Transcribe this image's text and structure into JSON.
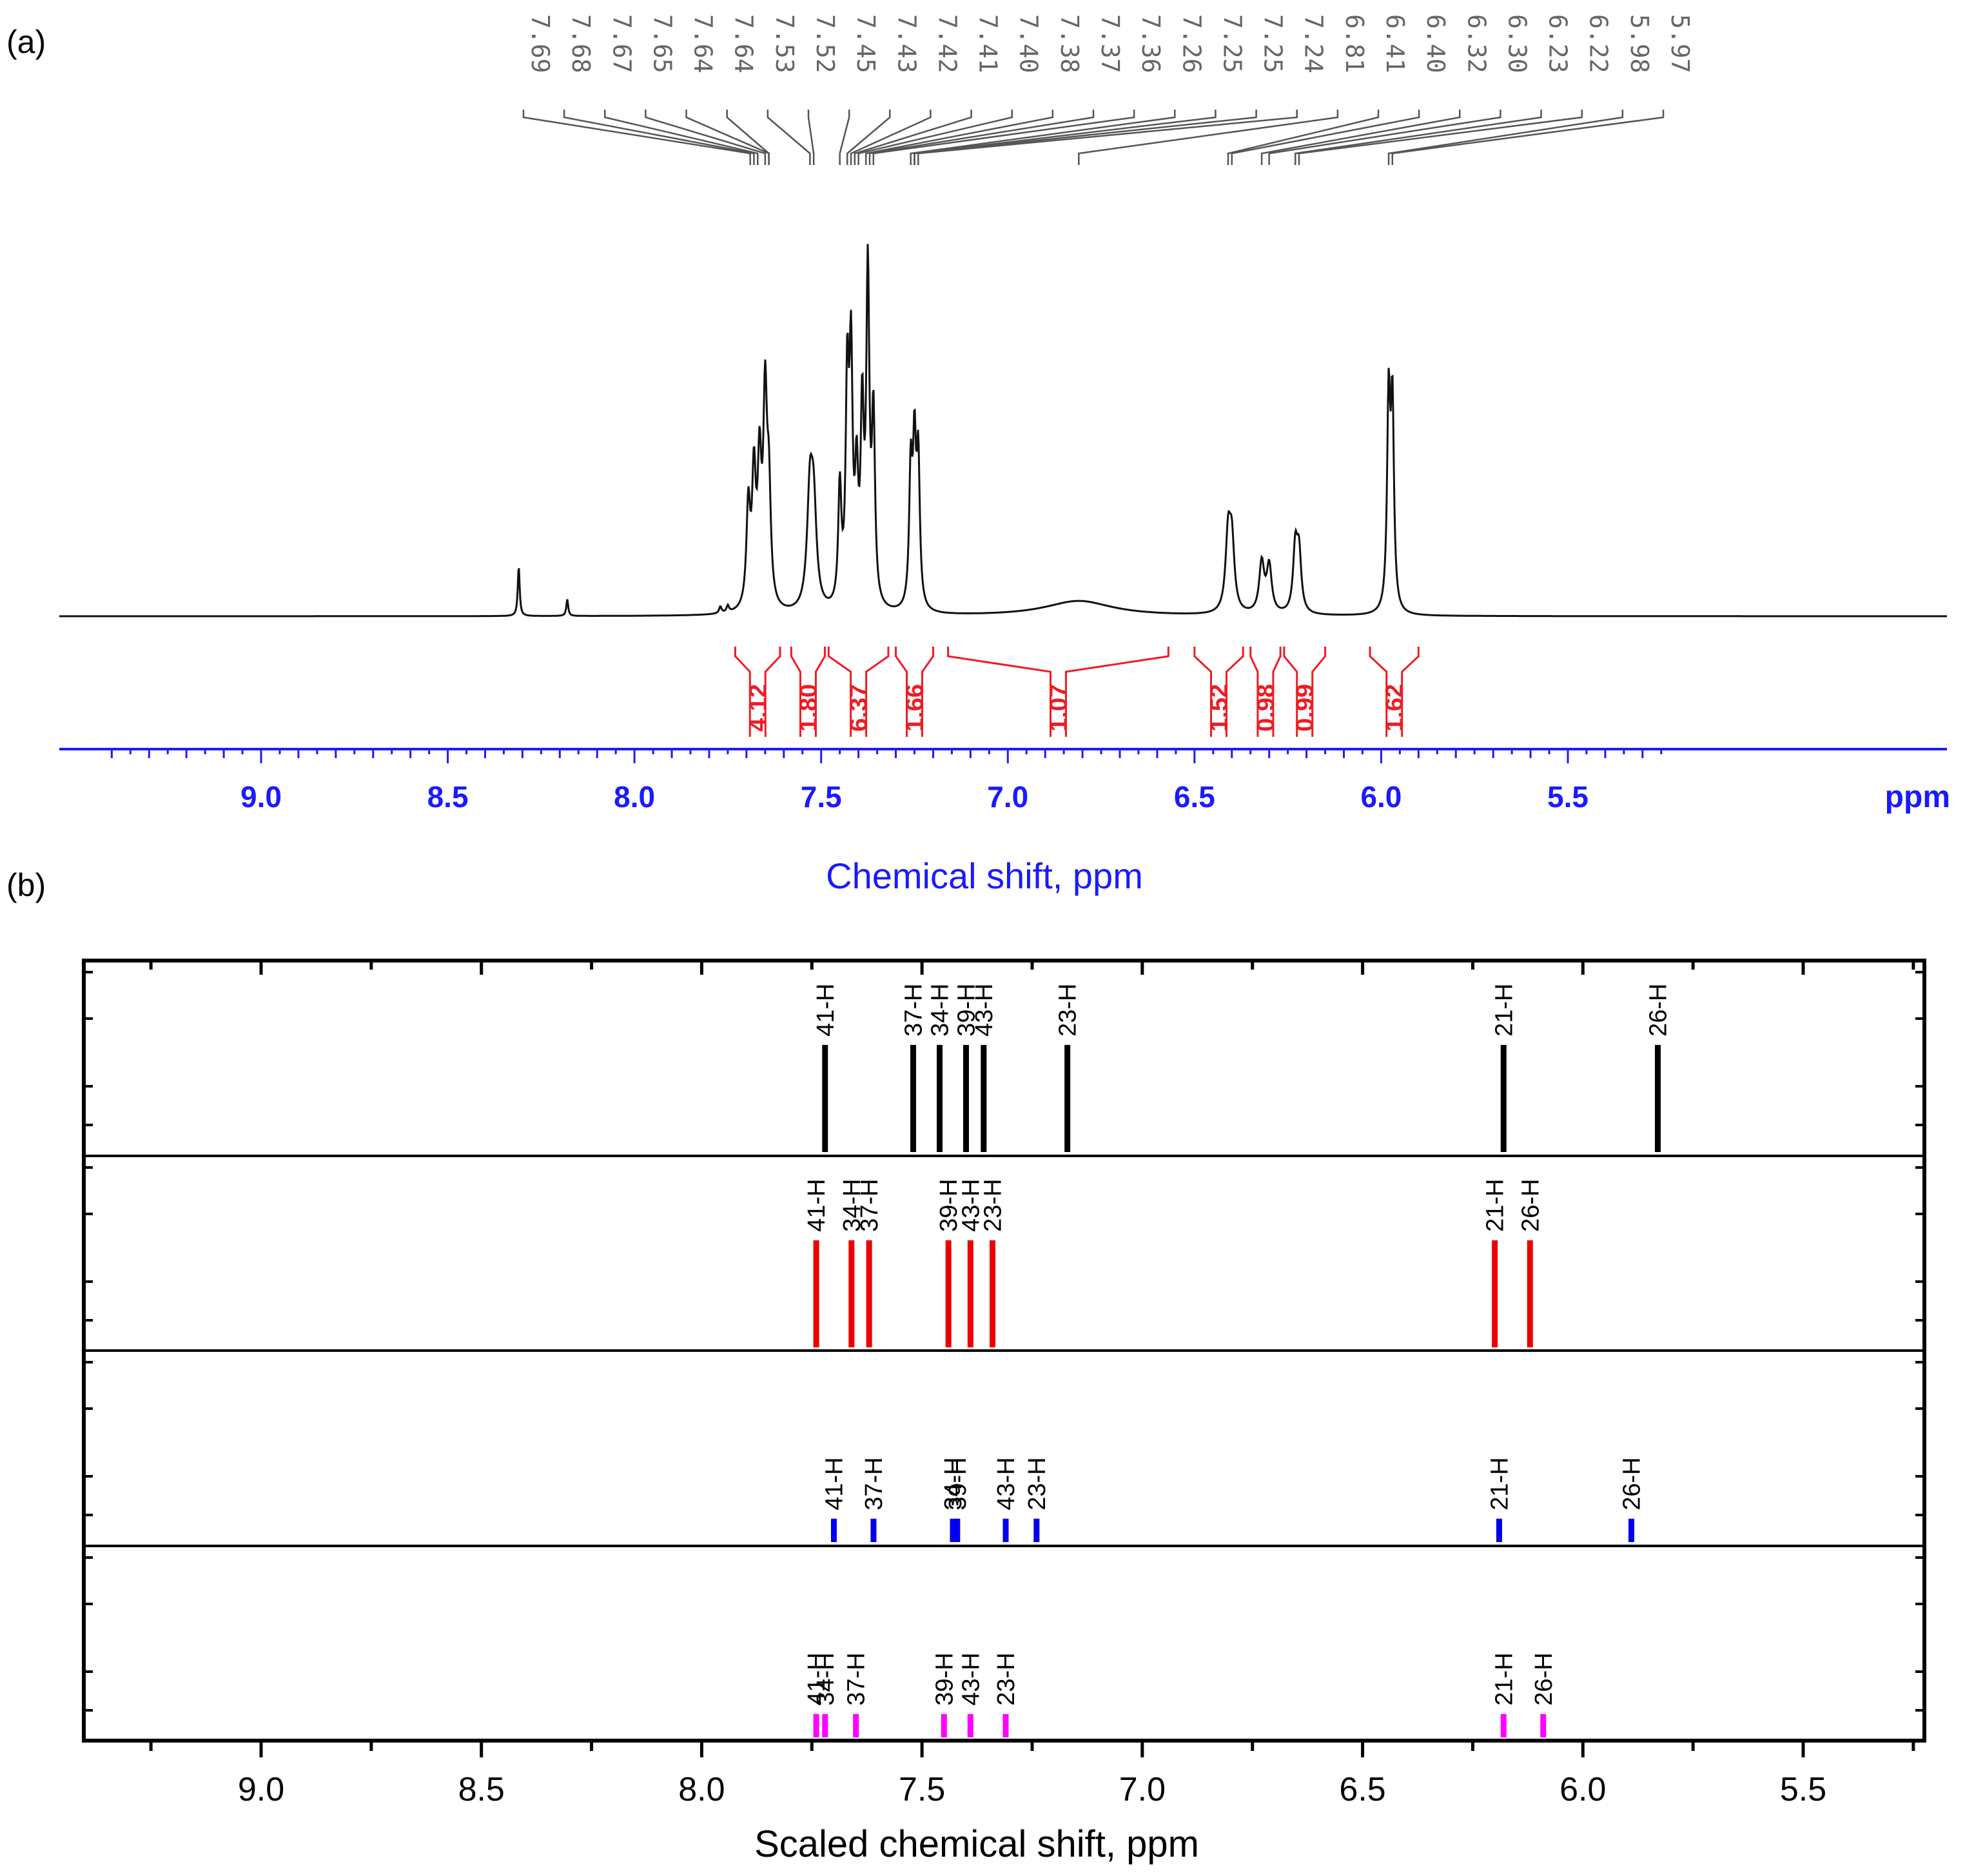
{
  "panel_a_label": "(a)",
  "panel_b_label": "(b)",
  "colors": {
    "spectrum": "#111111",
    "integral": "#ee1c24",
    "axis_a": "#1a1aff",
    "peak_labels": "#666666",
    "series": [
      "#000000",
      "#ee0000",
      "#0000ee",
      "#ff00ff"
    ]
  },
  "chart_data": [
    {
      "type": "line",
      "panel": "(a)",
      "xlabel": "Chemical shift, ppm",
      "unit_label": "ppm",
      "xlim": [
        9.45,
        5.2
      ],
      "xticks": [
        9.0,
        8.5,
        8.0,
        7.5,
        7.0,
        6.5,
        6.0,
        5.5
      ],
      "xtick_labels": [
        "9.0",
        "8.5",
        "8.0",
        "7.5",
        "7.0",
        "6.5",
        "6.0",
        "5.5"
      ],
      "peak_labels": [
        "7.69",
        "7.68",
        "7.67",
        "7.65",
        "7.64",
        "7.64",
        "7.53",
        "7.52",
        "7.45",
        "7.43",
        "7.42",
        "7.41",
        "7.40",
        "7.38",
        "7.37",
        "7.36",
        "7.26",
        "7.25",
        "7.25",
        "7.24",
        "6.81",
        "6.41",
        "6.40",
        "6.32",
        "6.30",
        "6.23",
        "6.22",
        "5.98",
        "5.97"
      ],
      "peaks": [
        {
          "x": 8.31,
          "h": 0.15,
          "w": 0.003
        },
        {
          "x": 8.18,
          "h": 0.05,
          "w": 0.003
        },
        {
          "x": 7.77,
          "h": 0.02,
          "w": 0.004
        },
        {
          "x": 7.75,
          "h": 0.02,
          "w": 0.004
        },
        {
          "x": 7.695,
          "h": 0.3,
          "w": 0.006
        },
        {
          "x": 7.68,
          "h": 0.38,
          "w": 0.006
        },
        {
          "x": 7.665,
          "h": 0.4,
          "w": 0.006
        },
        {
          "x": 7.65,
          "h": 0.6,
          "w": 0.006
        },
        {
          "x": 7.64,
          "h": 0.32,
          "w": 0.006
        },
        {
          "x": 7.53,
          "h": 0.33,
          "w": 0.009
        },
        {
          "x": 7.52,
          "h": 0.28,
          "w": 0.009
        },
        {
          "x": 7.45,
          "h": 0.35,
          "w": 0.005
        },
        {
          "x": 7.43,
          "h": 0.65,
          "w": 0.005
        },
        {
          "x": 7.42,
          "h": 0.7,
          "w": 0.005
        },
        {
          "x": 7.405,
          "h": 0.35,
          "w": 0.005
        },
        {
          "x": 7.39,
          "h": 0.55,
          "w": 0.005
        },
        {
          "x": 7.375,
          "h": 0.97,
          "w": 0.005
        },
        {
          "x": 7.36,
          "h": 0.55,
          "w": 0.005
        },
        {
          "x": 7.26,
          "h": 0.4,
          "w": 0.005
        },
        {
          "x": 7.25,
          "h": 0.45,
          "w": 0.005
        },
        {
          "x": 7.24,
          "h": 0.43,
          "w": 0.005
        },
        {
          "x": 6.81,
          "h": 0.045,
          "w": 0.11
        },
        {
          "x": 6.41,
          "h": 0.22,
          "w": 0.008
        },
        {
          "x": 6.4,
          "h": 0.2,
          "w": 0.008
        },
        {
          "x": 6.32,
          "h": 0.15,
          "w": 0.008
        },
        {
          "x": 6.3,
          "h": 0.14,
          "w": 0.008
        },
        {
          "x": 6.23,
          "h": 0.19,
          "w": 0.007
        },
        {
          "x": 6.22,
          "h": 0.17,
          "w": 0.007
        },
        {
          "x": 5.98,
          "h": 0.62,
          "w": 0.005
        },
        {
          "x": 5.97,
          "h": 0.6,
          "w": 0.005
        }
      ],
      "integrals": [
        {
          "value": "4.12",
          "from": 7.73,
          "to": 7.61
        },
        {
          "value": "1.80",
          "from": 7.58,
          "to": 7.49
        },
        {
          "value": "6.37",
          "from": 7.48,
          "to": 7.32
        },
        {
          "value": "1.66",
          "from": 7.3,
          "to": 7.2
        },
        {
          "value": "1.07",
          "from": 7.16,
          "to": 6.57
        },
        {
          "value": "1.52",
          "from": 6.5,
          "to": 6.37
        },
        {
          "value": "0.98",
          "from": 6.35,
          "to": 6.27
        },
        {
          "value": "0.99",
          "from": 6.26,
          "to": 6.15
        },
        {
          "value": "1.62",
          "from": 6.03,
          "to": 5.9
        }
      ]
    },
    {
      "type": "bar",
      "panel": "(b)",
      "xlabel": "Scaled chemical shift, ppm",
      "xlim": [
        9.45,
        5.2
      ],
      "xticks": [
        9.0,
        8.5,
        8.0,
        7.5,
        7.0,
        6.5,
        6.0,
        5.5
      ],
      "xtick_labels": [
        "9.0",
        "8.5",
        "8.0",
        "7.5",
        "7.0",
        "6.5",
        "6.0",
        "5.5"
      ],
      "series": [
        {
          "x": [
            7.72,
            7.52,
            7.46,
            7.4,
            7.36,
            7.17,
            6.18,
            5.83
          ],
          "height": 0.55,
          "labels": [
            "41-H",
            "37-H",
            "34-H",
            "39-H",
            "43-H",
            "23-H",
            "21-H",
            "26-H"
          ]
        },
        {
          "x": [
            7.74,
            7.66,
            7.62,
            7.44,
            7.39,
            7.34,
            6.2,
            6.12
          ],
          "height": 0.55,
          "labels": [
            "41-H",
            "34-H",
            "37-H",
            "39-H",
            "43-H",
            "23-H",
            "21-H",
            "26-H"
          ]
        },
        {
          "x": [
            7.7,
            7.61,
            7.43,
            7.42,
            7.31,
            7.24,
            6.19,
            5.89
          ],
          "height": 0.12,
          "labels": [
            "41-H",
            "37-H",
            "34-H",
            "39-H",
            "43-H",
            "23-H",
            "21-H",
            "26-H"
          ]
        },
        {
          "x": [
            7.74,
            7.72,
            7.65,
            7.45,
            7.39,
            7.31,
            6.18,
            6.09
          ],
          "height": 0.12,
          "labels": [
            "41-H",
            "34-H",
            "37-H",
            "39-H",
            "43-H",
            "23-H",
            "21-H",
            "26-H"
          ]
        }
      ]
    }
  ]
}
